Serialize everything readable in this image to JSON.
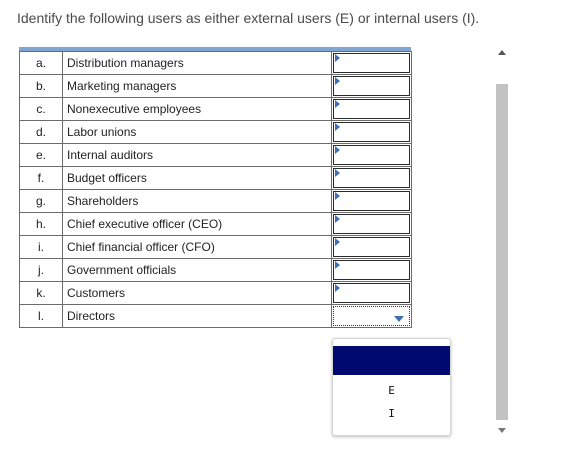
{
  "instruction": "Identify the following users as either external users (E) or internal users (I).",
  "rows": [
    {
      "letter": "a.",
      "user": "Distribution managers",
      "answer": ""
    },
    {
      "letter": "b.",
      "user": "Marketing managers",
      "answer": ""
    },
    {
      "letter": "c.",
      "user": "Nonexecutive employees",
      "answer": ""
    },
    {
      "letter": "d.",
      "user": "Labor unions",
      "answer": ""
    },
    {
      "letter": "e.",
      "user": "Internal auditors",
      "answer": ""
    },
    {
      "letter": "f.",
      "user": "Budget officers",
      "answer": ""
    },
    {
      "letter": "g.",
      "user": "Shareholders",
      "answer": ""
    },
    {
      "letter": "h.",
      "user": "Chief executive officer (CEO)",
      "answer": ""
    },
    {
      "letter": "i.",
      "user": "Chief financial officer (CFO)",
      "answer": ""
    },
    {
      "letter": "j.",
      "user": "Government officials",
      "answer": ""
    },
    {
      "letter": "k.",
      "user": "Customers",
      "answer": ""
    },
    {
      "letter": "l.",
      "user": "Directors",
      "answer": ""
    }
  ],
  "dropdown": {
    "options": [
      "",
      "E",
      "I"
    ],
    "highlighted_index": 0,
    "highlight_color": "#000a6e"
  },
  "accent_color": "#3f6fb5"
}
